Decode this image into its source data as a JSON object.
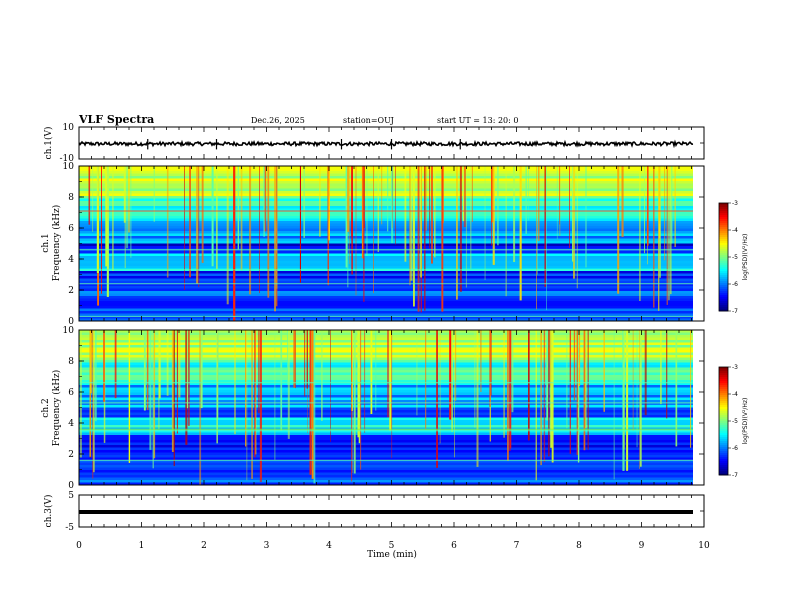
{
  "header": {
    "title": "VLF Spectra",
    "date": "Dec.26, 2025",
    "station": "station=OUJ",
    "start": "start  UT  =   13: 20: 0"
  },
  "chart_data": [
    {
      "type": "line",
      "id": "ch1-waveform",
      "ylabel": "ch.1(V)",
      "ylim": [
        -10,
        10
      ],
      "yticks": [
        "10",
        "-10"
      ],
      "baseline": -0.5,
      "xlim": [
        0,
        10
      ]
    },
    {
      "type": "heatmap",
      "id": "ch1-spectrogram",
      "ylabel": "ch.1\nFrequency (kHz)",
      "ylabel_top": "ch.1",
      "ylabel_bottom": "Frequency  (kHz)",
      "ylim": [
        0,
        10
      ],
      "yticks": [
        "0",
        "2",
        "4",
        "6",
        "8",
        "10"
      ],
      "xlim": [
        0,
        9.8
      ],
      "colorbar": {
        "label": "log(PSD)(V²/Hz)",
        "ticks": [
          "-3",
          "-4",
          "-5",
          "-6",
          "-7"
        ],
        "range": [
          -7,
          -3
        ]
      }
    },
    {
      "type": "heatmap",
      "id": "ch2-spectrogram",
      "ylabel_top": "ch.2",
      "ylabel_bottom": "Frequency  (kHz)",
      "ylim": [
        0,
        10
      ],
      "yticks": [
        "0",
        "2",
        "4",
        "6",
        "8",
        "10"
      ],
      "xlim": [
        0,
        9.8
      ],
      "colorbar": {
        "label": "log(PSD)(V²/Hz)",
        "ticks": [
          "-3",
          "-4",
          "-5",
          "-6",
          "-7"
        ],
        "range": [
          -7,
          -3
        ]
      }
    },
    {
      "type": "line",
      "id": "ch3-waveform",
      "ylabel": "ch.3(V)",
      "ylim": [
        -5,
        5
      ],
      "yticks": [
        "5",
        "-5"
      ],
      "baseline": -1.0,
      "xlim": [
        0,
        10
      ]
    }
  ],
  "xaxis": {
    "label": "Time  (min)",
    "ticks": [
      "0",
      "1",
      "2",
      "3",
      "4",
      "5",
      "6",
      "7",
      "8",
      "9",
      "10"
    ],
    "range": [
      0,
      10
    ]
  },
  "colors": {
    "frame": "#000000",
    "background": "#ffffff"
  }
}
